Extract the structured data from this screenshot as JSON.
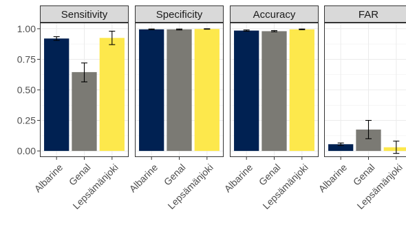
{
  "chart_data": {
    "type": "bar",
    "panels": [
      "Sensitivity",
      "Specificity",
      "Accuracy",
      "FAR"
    ],
    "categories": [
      "Albarine",
      "Genal",
      "Lepsämänjoki"
    ],
    "colors": [
      "#002152",
      "#7b7a74",
      "#fde84c"
    ],
    "y_ticks": [
      "0.00",
      "0.25",
      "0.50",
      "0.75",
      "1.00"
    ],
    "ylim": [
      -0.05,
      1.05
    ],
    "grid": true,
    "facets": [
      {
        "name": "Sensitivity",
        "values": [
          0.92,
          0.645,
          0.925
        ],
        "error_low": [
          0.905,
          0.565,
          0.87
        ],
        "error_high": [
          0.935,
          0.72,
          0.98
        ]
      },
      {
        "name": "Specificity",
        "values": [
          0.995,
          0.995,
          0.998
        ],
        "error_low": [
          0.992,
          0.99,
          0.996
        ],
        "error_high": [
          0.998,
          0.998,
          1.0
        ]
      },
      {
        "name": "Accuracy",
        "values": [
          0.985,
          0.98,
          0.995
        ],
        "error_low": [
          0.98,
          0.975,
          0.992
        ],
        "error_high": [
          0.99,
          0.985,
          0.998
        ]
      },
      {
        "name": "FAR",
        "values": [
          0.055,
          0.175,
          0.03
        ],
        "error_low": [
          0.045,
          0.1,
          -0.02
        ],
        "error_high": [
          0.065,
          0.25,
          0.08
        ]
      }
    ]
  }
}
